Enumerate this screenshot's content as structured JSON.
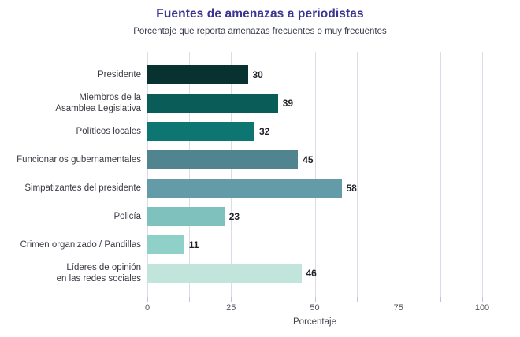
{
  "title": "Fuentes de amenazas a periodistas",
  "subtitle": "Porcentaje que reporta amenazas frecuentes o muy frecuentes",
  "chart_data": {
    "type": "bar",
    "orientation": "horizontal",
    "title": "Fuentes de amenazas a periodistas",
    "subtitle": "Porcentaje que reporta amenazas frecuentes o muy frecuentes",
    "categories": [
      "Presidente",
      "Miembros de la\nAsamblea Legislativa",
      "Políticos locales",
      "Funcionarios gubernamentales",
      "Simpatizantes del presidente",
      "Policía",
      "Crimen organizado / Pandillas",
      "Líderes de opinión\nen las redes sociales"
    ],
    "values": [
      30,
      39,
      32,
      45,
      58,
      23,
      11,
      46
    ],
    "bar_colors": [
      "#07322f",
      "#0a5c59",
      "#0e7672",
      "#50848f",
      "#649ba8",
      "#7fc2bd",
      "#8fd1c9",
      "#c2e5db"
    ],
    "xlabel": "Porcentaje",
    "xlim": [
      0,
      100
    ],
    "major_ticks": [
      0,
      25,
      50,
      75,
      100
    ],
    "minor_tick_step": 12.5,
    "grid": "vertical lines every 12.5, full height",
    "legend": "none",
    "value_labels_shown": true
  },
  "style": {
    "title_color": "#3d3590",
    "subtitle_color": "#373c4b",
    "category_label_color": "#3b3b45",
    "value_label_color": "#1e232a",
    "tick_label_color": "#52525e",
    "axis_title_color": "#44444f",
    "grid_color": "#dcdce9",
    "tick_color": "#c2c2d4",
    "background": "#ffffff"
  }
}
